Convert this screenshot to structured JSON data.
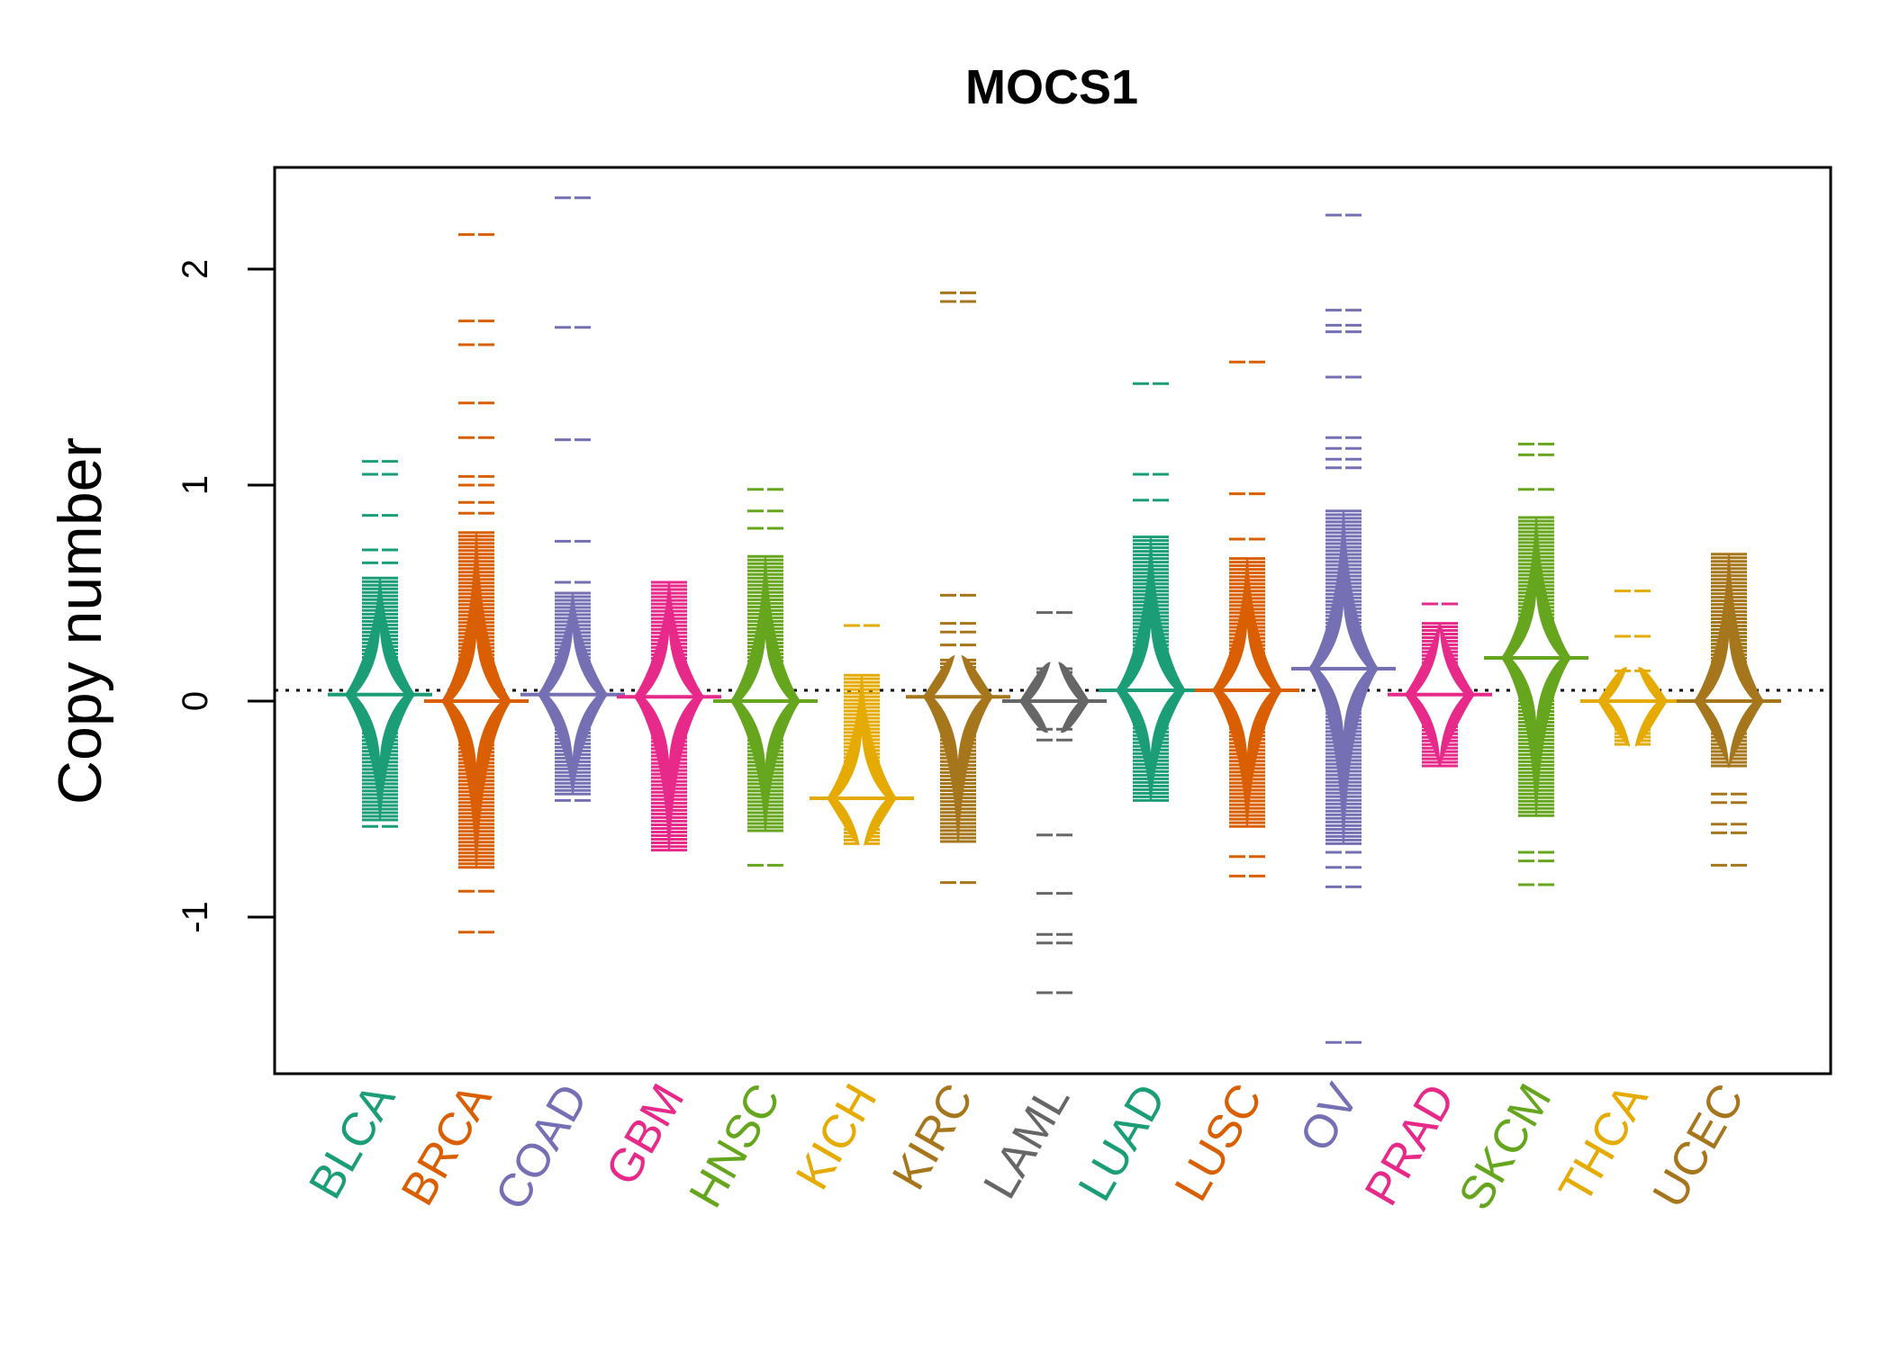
{
  "chart_data": {
    "type": "beanplot",
    "title": "MOCS1",
    "xlabel": "",
    "ylabel": "Copy number",
    "ylim": [
      -1.75,
      2.5
    ],
    "yticks": [
      -1,
      0,
      1,
      2
    ],
    "ytick_labels": [
      "-1",
      "0",
      "1",
      "2"
    ],
    "reference_line": 0.05,
    "grid": false,
    "legend": "none",
    "categories": [
      "BLCA",
      "BRCA",
      "COAD",
      "GBM",
      "HNSC",
      "KICH",
      "KIRC",
      "LAML",
      "LUAD",
      "LUSC",
      "OV",
      "PRAD",
      "SKCM",
      "THCA",
      "UCEC"
    ],
    "colors": [
      "#1B9E77",
      "#D95F02",
      "#7570B3",
      "#E7298A",
      "#66A61E",
      "#E6AB02",
      "#A6761D",
      "#666666",
      "#1B9E77",
      "#D95F02",
      "#7570B3",
      "#E7298A",
      "#66A61E",
      "#E6AB02",
      "#A6761D"
    ],
    "series": [
      {
        "name": "BLCA",
        "median": 0.03,
        "body": [
          -0.55,
          0.57
        ],
        "outliers": [
          1.11,
          1.05,
          0.86,
          0.7,
          0.64,
          -0.58
        ]
      },
      {
        "name": "BRCA",
        "median": 0.0,
        "body": [
          -0.77,
          0.78
        ],
        "outliers": [
          2.16,
          1.76,
          1.65,
          1.38,
          1.22,
          1.04,
          1.0,
          0.92,
          0.87,
          -0.88,
          -1.07
        ]
      },
      {
        "name": "COAD",
        "median": 0.03,
        "body": [
          -0.43,
          0.5
        ],
        "outliers": [
          2.33,
          1.73,
          1.21,
          0.74,
          0.55,
          -0.46
        ]
      },
      {
        "name": "GBM",
        "median": 0.02,
        "body": [
          -0.69,
          0.55
        ],
        "outliers": []
      },
      {
        "name": "HNSC",
        "median": 0.0,
        "body": [
          -0.6,
          0.67
        ],
        "outliers": [
          0.98,
          0.88,
          0.8,
          -0.76
        ]
      },
      {
        "name": "KICH",
        "median": -0.45,
        "body": [
          -0.66,
          0.12
        ],
        "outliers": [
          0.35
        ]
      },
      {
        "name": "KIRC",
        "median": 0.02,
        "body": [
          -0.65,
          0.19
        ],
        "outliers": [
          1.89,
          1.85,
          0.49,
          0.36,
          0.32,
          0.26,
          -0.84
        ]
      },
      {
        "name": "LAML",
        "median": 0.0,
        "body": [
          -0.07,
          0.15
        ],
        "outliers": [
          0.41,
          -0.13,
          -0.18,
          -0.62,
          -0.89,
          -1.08,
          -1.12,
          -1.35
        ]
      },
      {
        "name": "LUAD",
        "median": 0.05,
        "body": [
          -0.46,
          0.76
        ],
        "outliers": [
          1.47,
          1.05,
          0.93
        ]
      },
      {
        "name": "LUSC",
        "median": 0.05,
        "body": [
          -0.58,
          0.66
        ],
        "outliers": [
          1.57,
          0.96,
          0.75,
          -0.72,
          -0.81
        ]
      },
      {
        "name": "OV",
        "median": 0.15,
        "body": [
          -0.66,
          0.88
        ],
        "outliers": [
          2.25,
          1.81,
          1.74,
          1.71,
          1.5,
          1.22,
          1.17,
          1.12,
          1.08,
          -0.7,
          -0.77,
          -0.86,
          -1.58
        ]
      },
      {
        "name": "PRAD",
        "median": 0.03,
        "body": [
          -0.3,
          0.36
        ],
        "outliers": [
          0.45
        ]
      },
      {
        "name": "SKCM",
        "median": 0.2,
        "body": [
          -0.53,
          0.85
        ],
        "outliers": [
          1.19,
          1.14,
          0.98,
          -0.7,
          -0.74,
          -0.85
        ]
      },
      {
        "name": "THCA",
        "median": 0.0,
        "body": [
          -0.2,
          0.1
        ],
        "outliers": [
          0.51,
          0.3,
          0.14
        ]
      },
      {
        "name": "UCEC",
        "median": 0.0,
        "body": [
          -0.3,
          0.68
        ],
        "outliers": [
          -0.43,
          -0.47,
          -0.57,
          -0.61,
          -0.76
        ]
      }
    ]
  }
}
